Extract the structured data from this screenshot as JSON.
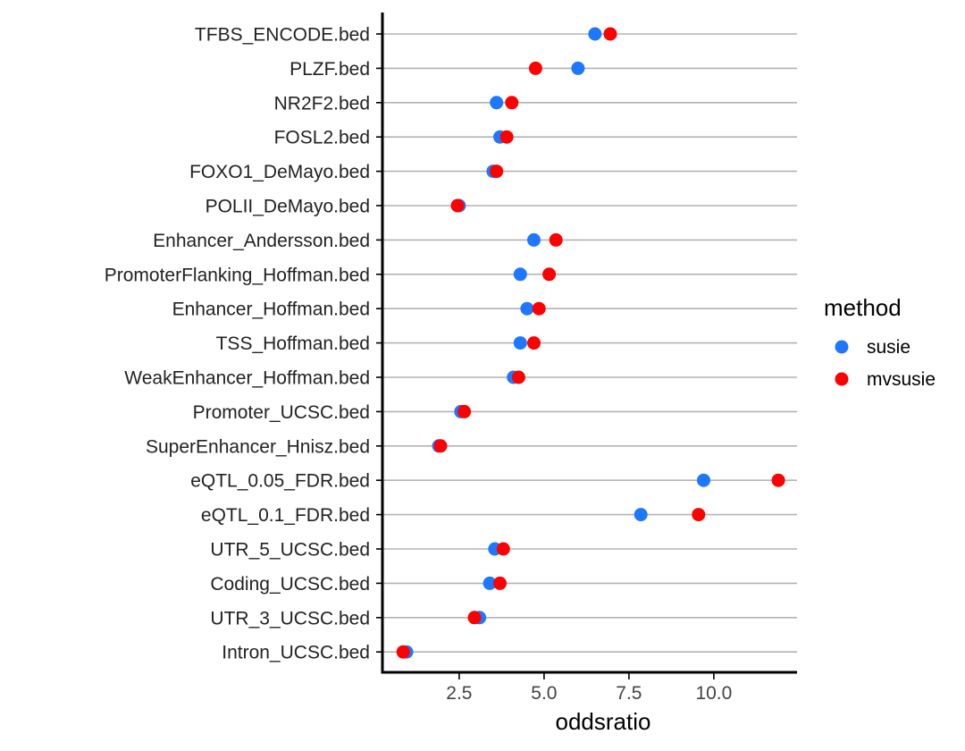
{
  "chart_data": {
    "type": "scatter",
    "style": "dot-plot",
    "orientation": "horizontal",
    "xlabel": "oddsratio",
    "ylabel": "",
    "xlim": [
      0.5,
      12.3
    ],
    "xticks": [
      2.5,
      5.0,
      7.5,
      10.0
    ],
    "xtick_labels": [
      "2.5",
      "5.0",
      "7.5",
      "10.0"
    ],
    "grid": "horizontal lines at each category",
    "categories": [
      "TFBS_ENCODE.bed",
      "PLZF.bed",
      "NR2F2.bed",
      "FOSL2.bed",
      "FOXO1_DeMayo.bed",
      "POLII_DeMayo.bed",
      "Enhancer_Andersson.bed",
      "PromoterFlanking_Hoffman.bed",
      "Enhancer_Hoffman.bed",
      "TSS_Hoffman.bed",
      "WeakEnhancer_Hoffman.bed",
      "Promoter_UCSC.bed",
      "SuperEnhancer_Hnisz.bed",
      "eQTL_0.05_FDR.bed",
      "eQTL_0.1_FDR.bed",
      "UTR_5_UCSC.bed",
      "Coding_UCSC.bed",
      "UTR_3_UCSC.bed",
      "Intron_UCSC.bed"
    ],
    "series": [
      {
        "name": "susie",
        "color": "#1E78FF",
        "values": [
          6.5,
          6.0,
          3.6,
          3.7,
          3.5,
          2.5,
          4.7,
          4.3,
          4.5,
          4.3,
          4.1,
          2.55,
          1.9,
          9.7,
          7.85,
          3.55,
          3.4,
          3.1,
          0.95
        ]
      },
      {
        "name": "mvsusie",
        "color": "#FF0000",
        "values": [
          6.95,
          4.75,
          4.05,
          3.9,
          3.6,
          2.45,
          5.35,
          5.15,
          4.85,
          4.7,
          4.25,
          2.65,
          1.95,
          11.9,
          9.55,
          3.8,
          3.7,
          2.95,
          0.85
        ]
      }
    ],
    "legend": {
      "title": "method",
      "placement": "right",
      "entries": [
        "susie",
        "mvsusie"
      ]
    }
  }
}
